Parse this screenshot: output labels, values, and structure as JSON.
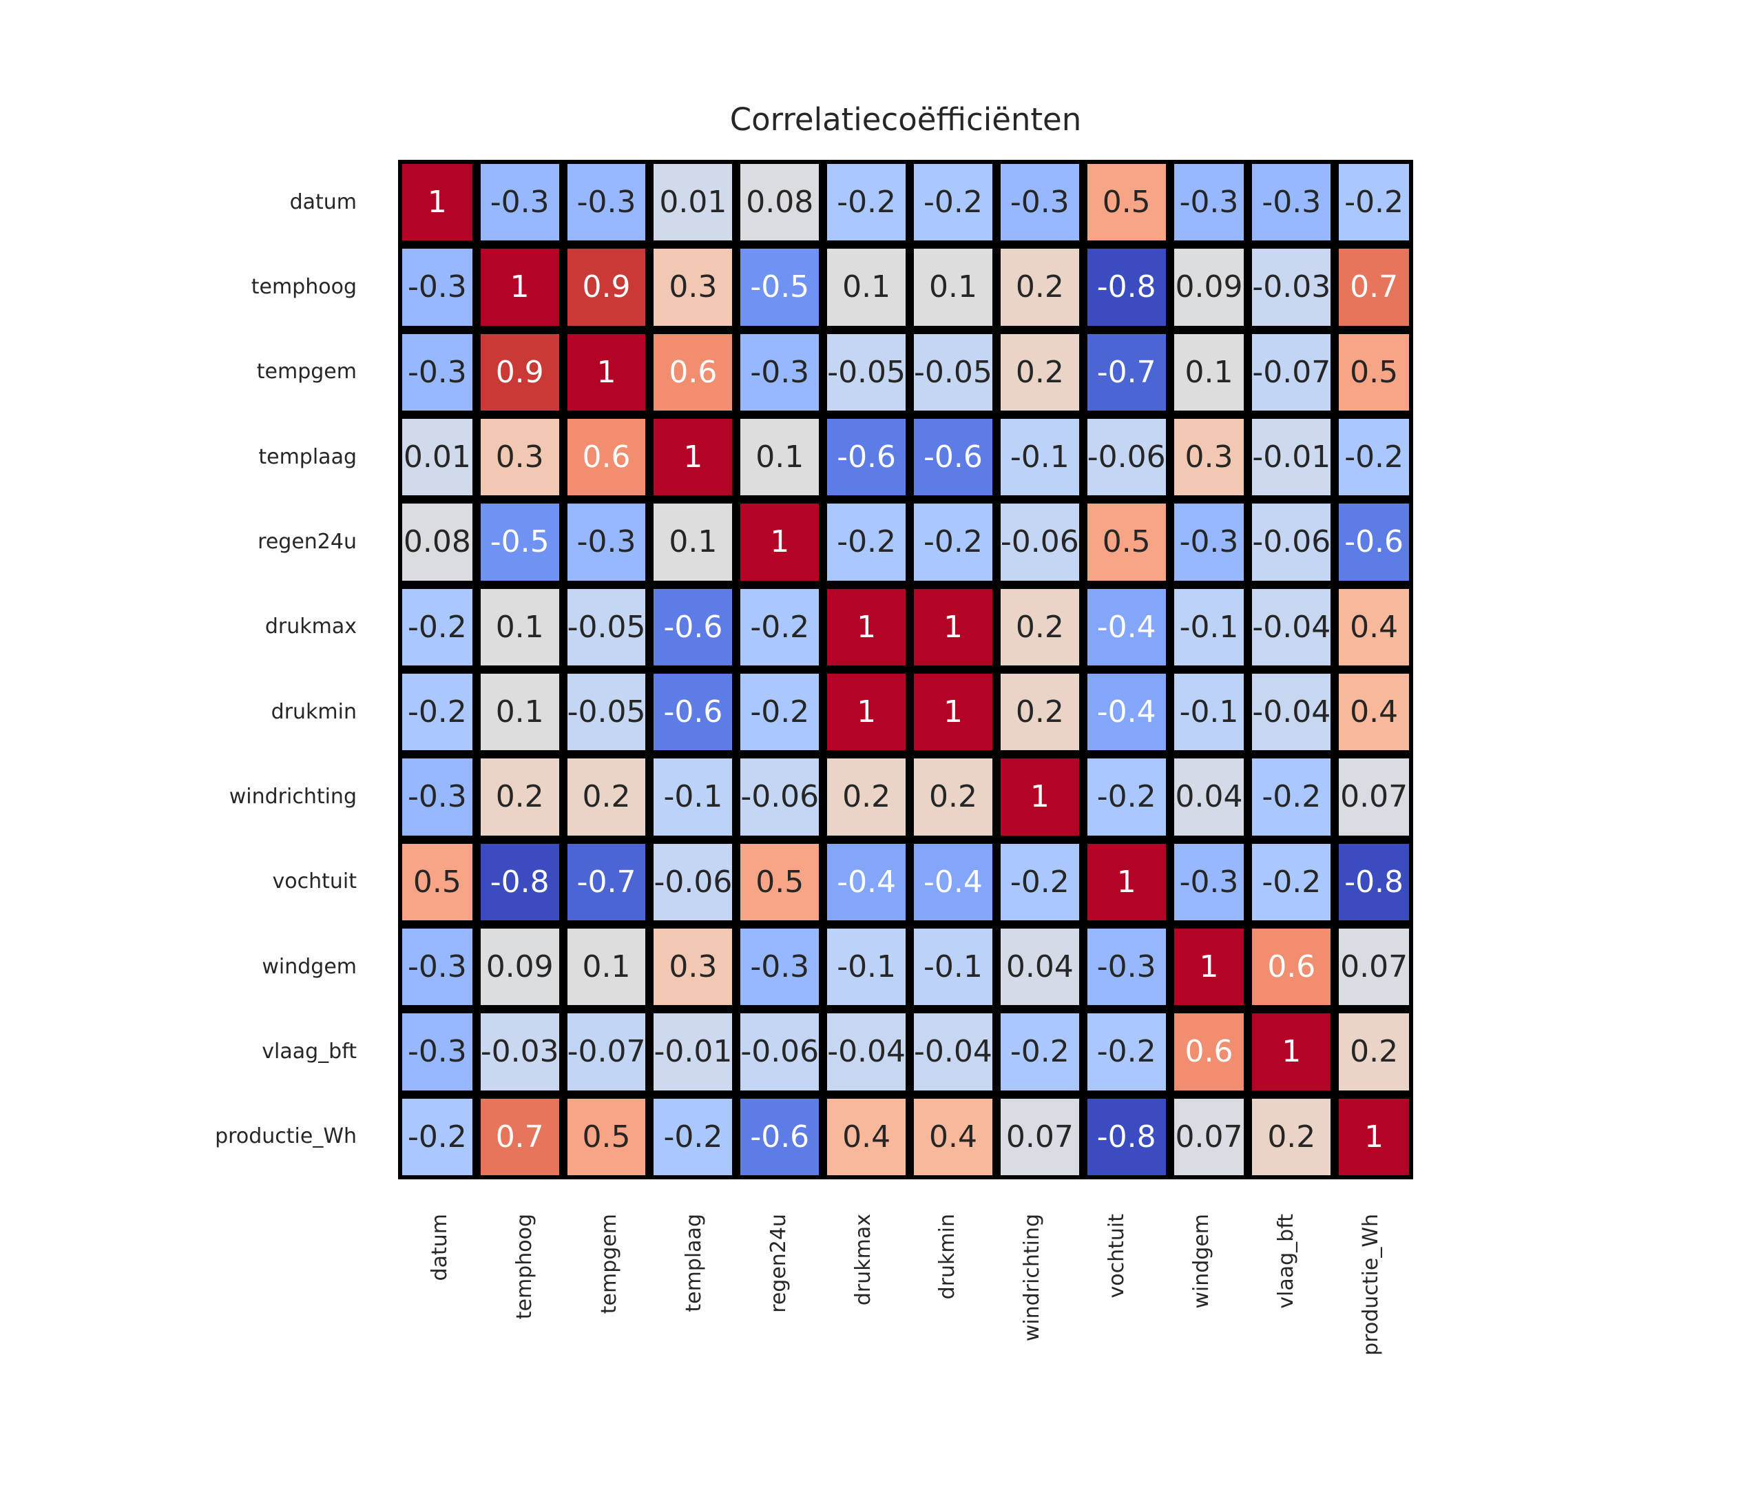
{
  "chart_data": {
    "type": "heatmap",
    "title": "Correlatiecoëfficiënten",
    "variables": [
      "datum",
      "temphoog",
      "tempgem",
      "templaag",
      "regen24u",
      "drukmax",
      "drukmin",
      "windrichting",
      "vochtuit",
      "windgem",
      "vlaag_bft",
      "productie_Wh"
    ],
    "matrix": [
      [
        1,
        -0.3,
        -0.3,
        0.01,
        0.08,
        -0.2,
        -0.2,
        -0.3,
        0.5,
        -0.3,
        -0.3,
        -0.2
      ],
      [
        -0.3,
        1,
        0.9,
        0.3,
        -0.5,
        0.1,
        0.1,
        0.2,
        -0.8,
        0.09,
        -0.03,
        0.7
      ],
      [
        -0.3,
        0.9,
        1,
        0.6,
        -0.3,
        -0.05,
        -0.05,
        0.2,
        -0.7,
        0.1,
        -0.07,
        0.5
      ],
      [
        0.01,
        0.3,
        0.6,
        1,
        0.1,
        -0.6,
        -0.6,
        -0.1,
        -0.06,
        0.3,
        -0.01,
        -0.2
      ],
      [
        0.08,
        -0.5,
        -0.3,
        0.1,
        1,
        -0.2,
        -0.2,
        -0.06,
        0.5,
        -0.3,
        -0.06,
        -0.6
      ],
      [
        -0.2,
        0.1,
        -0.05,
        -0.6,
        -0.2,
        1,
        1,
        0.2,
        -0.4,
        -0.1,
        -0.04,
        0.4
      ],
      [
        -0.2,
        0.1,
        -0.05,
        -0.6,
        -0.2,
        1,
        1,
        0.2,
        -0.4,
        -0.1,
        -0.04,
        0.4
      ],
      [
        -0.3,
        0.2,
        0.2,
        -0.1,
        -0.06,
        0.2,
        0.2,
        1,
        -0.2,
        0.04,
        -0.2,
        0.07
      ],
      [
        0.5,
        -0.8,
        -0.7,
        -0.06,
        0.5,
        -0.4,
        -0.4,
        -0.2,
        1,
        -0.3,
        -0.2,
        -0.8
      ],
      [
        -0.3,
        0.09,
        0.1,
        0.3,
        -0.3,
        -0.1,
        -0.1,
        0.04,
        -0.3,
        1,
        0.6,
        0.07
      ],
      [
        -0.3,
        -0.03,
        -0.07,
        -0.01,
        -0.06,
        -0.04,
        -0.04,
        -0.2,
        -0.2,
        0.6,
        1,
        0.2
      ],
      [
        -0.2,
        0.7,
        0.5,
        -0.2,
        -0.6,
        0.4,
        0.4,
        0.07,
        -0.8,
        0.07,
        0.2,
        1
      ]
    ],
    "vmin": -0.8,
    "vmax": 1,
    "colormap": "coolwarm",
    "colormap_stops": [
      "#3B4CC0",
      "#445ACC",
      "#4D68D7",
      "#5775E1",
      "#6282EA",
      "#6C8EF1",
      "#779AF7",
      "#82A5FB",
      "#8DB0FE",
      "#98B9FF",
      "#A3C2FF",
      "#AEC9FD",
      "#B8D0F9",
      "#C2D5F4",
      "#CCD9EE",
      "#D5DBE6",
      "#DDDDDD",
      "#E5D8D1",
      "#ECD3C5",
      "#F1CCB9",
      "#F5C4AD",
      "#F7BBA0",
      "#F7B194",
      "#F7A687",
      "#F49A7B",
      "#F18D6F",
      "#EC7F63",
      "#E57058",
      "#DE604D",
      "#D55042",
      "#CB3E38",
      "#C0282F",
      "#B40426"
    ],
    "grid_line_color": "#000000",
    "background_color": "#ffffff",
    "annotation_color_dark": "#262626",
    "annotation_color_light": "#ffffff",
    "tick_label_color": "#262626",
    "legend_position": "none",
    "grid": "off"
  }
}
